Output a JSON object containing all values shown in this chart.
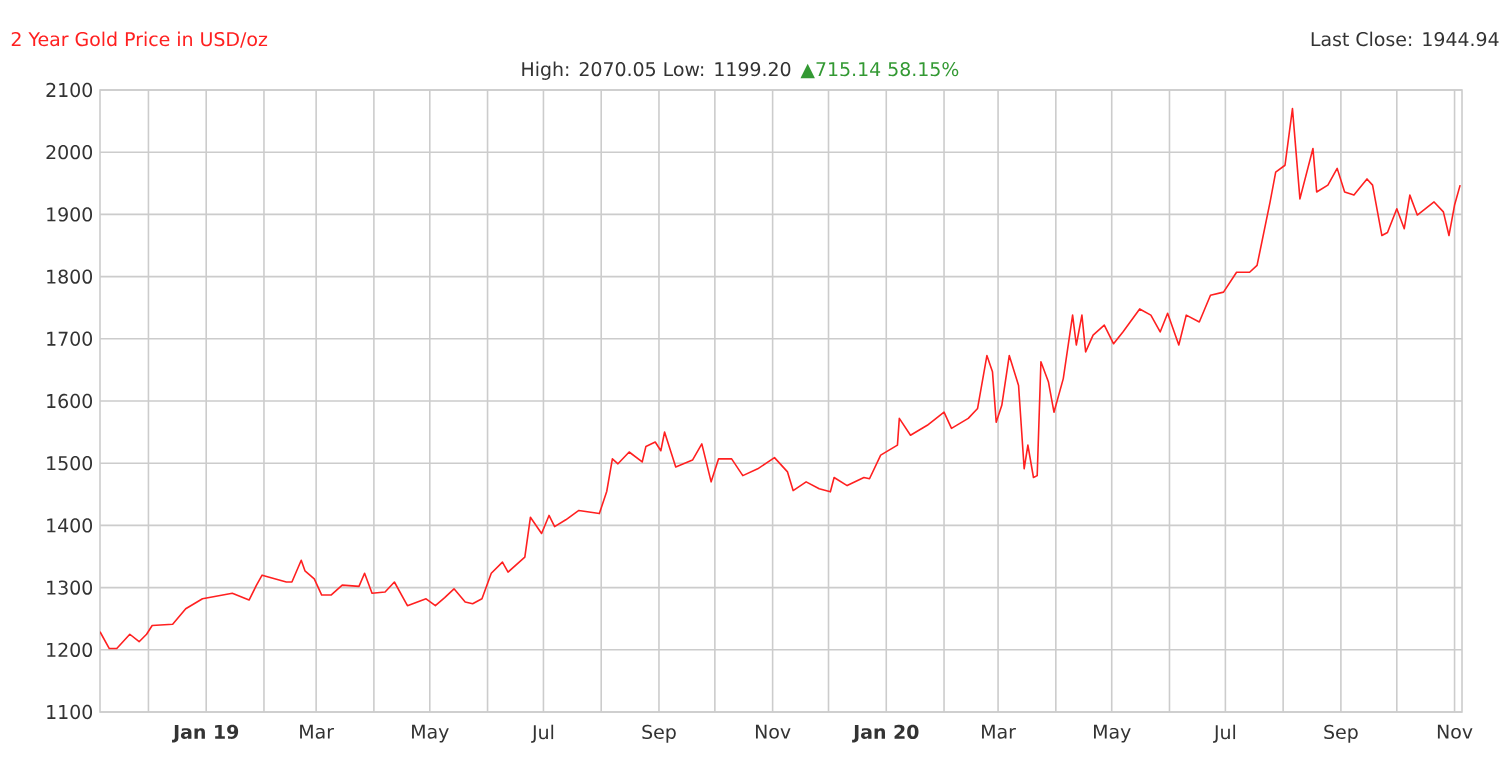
{
  "chart_data": {
    "type": "line",
    "title": "2 Year Gold Price in USD/oz",
    "annotations": [
      "Last Close: 1944.94",
      "High: 2070.05 Low: 1199.20",
      "▲715.14 58.15%"
    ],
    "color": "#ff2020",
    "x": [
      "2018-11-05",
      "2018-11-10",
      "2018-11-14",
      "2018-11-21",
      "2018-11-26",
      "2018-11-30",
      "2018-12-03",
      "2018-12-14",
      "2018-12-21",
      "2018-12-30",
      "2019-01-15",
      "2019-01-24",
      "2019-01-28",
      "2019-01-31",
      "2019-02-13",
      "2019-02-16",
      "2019-02-21",
      "2019-02-23",
      "2019-02-28",
      "2019-03-04",
      "2019-03-09",
      "2019-03-15",
      "2019-03-24",
      "2019-03-27",
      "2019-03-31",
      "2019-04-07",
      "2019-04-12",
      "2019-04-19",
      "2019-04-29",
      "2019-05-04",
      "2019-05-09",
      "2019-05-14",
      "2019-05-20",
      "2019-05-24",
      "2019-05-29",
      "2019-06-03",
      "2019-06-09",
      "2019-06-12",
      "2019-06-21",
      "2019-06-24",
      "2019-06-30",
      "2019-07-04",
      "2019-07-07",
      "2019-07-13",
      "2019-07-20",
      "2019-07-31",
      "2019-08-04",
      "2019-08-07",
      "2019-08-10",
      "2019-08-16",
      "2019-08-23",
      "2019-08-25",
      "2019-08-30",
      "2019-09-02",
      "2019-09-04",
      "2019-09-10",
      "2019-09-19",
      "2019-09-24",
      "2019-09-29",
      "2019-10-03",
      "2019-10-10",
      "2019-10-16",
      "2019-10-24",
      "2019-11-02",
      "2019-11-09",
      "2019-11-12",
      "2019-11-19",
      "2019-11-26",
      "2019-12-02",
      "2019-12-04",
      "2019-12-11",
      "2019-12-20",
      "2019-12-23",
      "2019-12-29",
      "2020-01-07",
      "2020-01-08",
      "2020-01-14",
      "2020-01-23",
      "2020-02-01",
      "2020-02-05",
      "2020-02-14",
      "2020-02-19",
      "2020-02-24",
      "2020-02-27",
      "2020-02-29",
      "2020-03-03",
      "2020-03-07",
      "2020-03-12",
      "2020-03-15",
      "2020-03-17",
      "2020-03-20",
      "2020-03-22",
      "2020-03-24",
      "2020-03-28",
      "2020-03-31",
      "2020-04-05",
      "2020-04-10",
      "2020-04-12",
      "2020-04-15",
      "2020-04-17",
      "2020-04-21",
      "2020-04-27",
      "2020-05-02",
      "2020-05-07",
      "2020-05-16",
      "2020-05-22",
      "2020-05-27",
      "2020-05-31",
      "2020-06-06",
      "2020-06-10",
      "2020-06-17",
      "2020-06-23",
      "2020-06-30",
      "2020-07-07",
      "2020-07-14",
      "2020-07-18",
      "2020-07-25",
      "2020-07-28",
      "2020-08-02",
      "2020-08-06",
      "2020-08-10",
      "2020-08-17",
      "2020-08-19",
      "2020-08-25",
      "2020-08-30",
      "2020-09-03",
      "2020-09-08",
      "2020-09-15",
      "2020-09-18",
      "2020-09-23",
      "2020-09-26",
      "2020-10-01",
      "2020-10-05",
      "2020-10-08",
      "2020-10-12",
      "2020-10-21",
      "2020-10-26",
      "2020-10-29",
      "2020-11-01",
      "2020-11-04"
    ],
    "values": [
      1229,
      1202,
      1202,
      1225,
      1213,
      1225,
      1239,
      1241,
      1266,
      1282,
      1291,
      1280,
      1304,
      1320,
      1309,
      1309,
      1344,
      1327,
      1314,
      1288,
      1288,
      1304,
      1302,
      1323,
      1291,
      1293,
      1309,
      1271,
      1282,
      1271,
      1284,
      1298,
      1277,
      1274,
      1282,
      1323,
      1341,
      1325,
      1349,
      1413,
      1387,
      1416,
      1398,
      1409,
      1424,
      1419,
      1455,
      1507,
      1499,
      1518,
      1502,
      1527,
      1534,
      1520,
      1550,
      1494,
      1505,
      1531,
      1470,
      1507,
      1507,
      1480,
      1491,
      1509,
      1486,
      1456,
      1470,
      1459,
      1454,
      1477,
      1464,
      1477,
      1475,
      1513,
      1529,
      1572,
      1545,
      1561,
      1582,
      1556,
      1572,
      1588,
      1673,
      1647,
      1566,
      1593,
      1673,
      1625,
      1491,
      1529,
      1477,
      1480,
      1663,
      1631,
      1582,
      1636,
      1738,
      1690,
      1738,
      1679,
      1706,
      1722,
      1692,
      1711,
      1748,
      1738,
      1711,
      1741,
      1690,
      1738,
      1727,
      1770,
      1775,
      1807,
      1807,
      1818,
      1920,
      1968,
      1979,
      2070,
      1925,
      2006,
      1936,
      1947,
      1974,
      1936,
      1931,
      1957,
      1947,
      1866,
      1871,
      1909,
      1877,
      1931,
      1899,
      1920,
      1904,
      1866,
      1915,
      1947
    ],
    "xlim": [
      "2018-11-05",
      "2020-11-05"
    ],
    "xticks": [
      {
        "value": "2018-12-01",
        "label": null
      },
      {
        "value": "2019-01-01",
        "label": "Jan 19"
      },
      {
        "value": "2019-02-01",
        "label": null
      },
      {
        "value": "2019-03-01",
        "label": "Mar"
      },
      {
        "value": "2019-04-01",
        "label": null
      },
      {
        "value": "2019-05-01",
        "label": "May"
      },
      {
        "value": "2019-06-01",
        "label": null
      },
      {
        "value": "2019-07-01",
        "label": "Jul"
      },
      {
        "value": "2019-08-01",
        "label": null
      },
      {
        "value": "2019-09-01",
        "label": "Sep"
      },
      {
        "value": "2019-10-01",
        "label": null
      },
      {
        "value": "2019-11-01",
        "label": "Nov"
      },
      {
        "value": "2019-12-01",
        "label": null
      },
      {
        "value": "2020-01-01",
        "label": "Jan 20"
      },
      {
        "value": "2020-02-01",
        "label": null
      },
      {
        "value": "2020-03-01",
        "label": "Mar"
      },
      {
        "value": "2020-04-01",
        "label": null
      },
      {
        "value": "2020-05-01",
        "label": "May"
      },
      {
        "value": "2020-06-01",
        "label": null
      },
      {
        "value": "2020-07-01",
        "label": "Jul"
      },
      {
        "value": "2020-08-01",
        "label": null
      },
      {
        "value": "2020-09-01",
        "label": "Sep"
      },
      {
        "value": "2020-10-01",
        "label": null
      },
      {
        "value": "2020-11-01",
        "label": "Nov"
      }
    ],
    "ylim": [
      1100,
      2100
    ],
    "yticks": [
      1100,
      1200,
      1300,
      1400,
      1500,
      1600,
      1700,
      1800,
      1900,
      2000,
      2100
    ],
    "grid": true
  }
}
